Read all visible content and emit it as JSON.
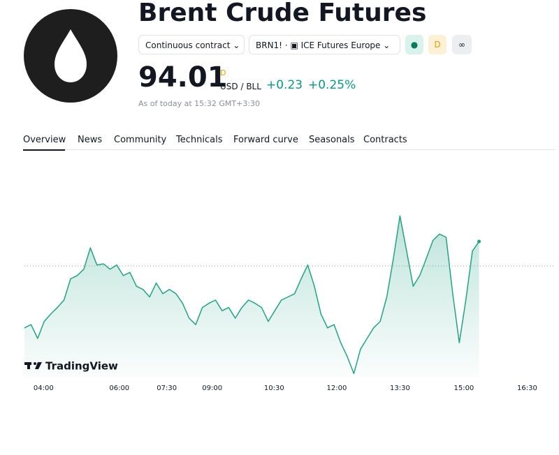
{
  "header": {
    "title": "Brent Crude Futures",
    "contract_button": "Continuous contract",
    "symbol_button": "BRN1!",
    "exchange": "ICE Futures Europe",
    "badge_d": "D",
    "price": "94.01",
    "price_flag": "D",
    "currency": "USD / BLL",
    "change": "+0.23",
    "change_percent": "+0.25%",
    "timestamp": "As of today at 15:32 GMT+3:30"
  },
  "tabs": [
    "Overview",
    "News",
    "Community",
    "Technicals",
    "Forward curve",
    "Seasonals",
    "Contracts"
  ],
  "chart_data": {
    "type": "line",
    "brand": "TradingView",
    "color": "#22a383",
    "reference_line": 93.78,
    "values": [
      93.2,
      93.23,
      93.1,
      93.26,
      93.33,
      93.39,
      93.46,
      93.66,
      93.69,
      93.75,
      93.95,
      93.79,
      93.8,
      93.75,
      93.79,
      93.69,
      93.72,
      93.59,
      93.56,
      93.49,
      93.62,
      93.52,
      93.56,
      93.52,
      93.43,
      93.29,
      93.23,
      93.39,
      93.43,
      93.46,
      93.36,
      93.39,
      93.29,
      93.39,
      93.46,
      93.43,
      93.39,
      93.26,
      93.36,
      93.46,
      93.49,
      93.52,
      93.66,
      93.79,
      93.59,
      93.33,
      93.2,
      93.23,
      93.06,
      92.93,
      92.77,
      93.0,
      93.1,
      93.2,
      93.26,
      93.49,
      93.85,
      94.25,
      93.92,
      93.59,
      93.69,
      93.85,
      94.02,
      94.08,
      94.05,
      93.52,
      93.06,
      93.46,
      93.92,
      94.01
    ],
    "xlim": [
      0,
      77
    ],
    "ylim": [
      92.74,
      94.77
    ],
    "xticks": [
      {
        "value": 2.9,
        "label": "04:00"
      },
      {
        "value": 14.4,
        "label": "06:00"
      },
      {
        "value": 21.6,
        "label": "07:30"
      },
      {
        "value": 28.5,
        "label": "09:00"
      },
      {
        "value": 37.9,
        "label": "10:30"
      },
      {
        "value": 47.4,
        "label": "12:00"
      },
      {
        "value": 57.0,
        "label": "13:30"
      },
      {
        "value": 66.7,
        "label": "15:00"
      },
      {
        "value": 76.3,
        "label": "16:30"
      }
    ]
  }
}
